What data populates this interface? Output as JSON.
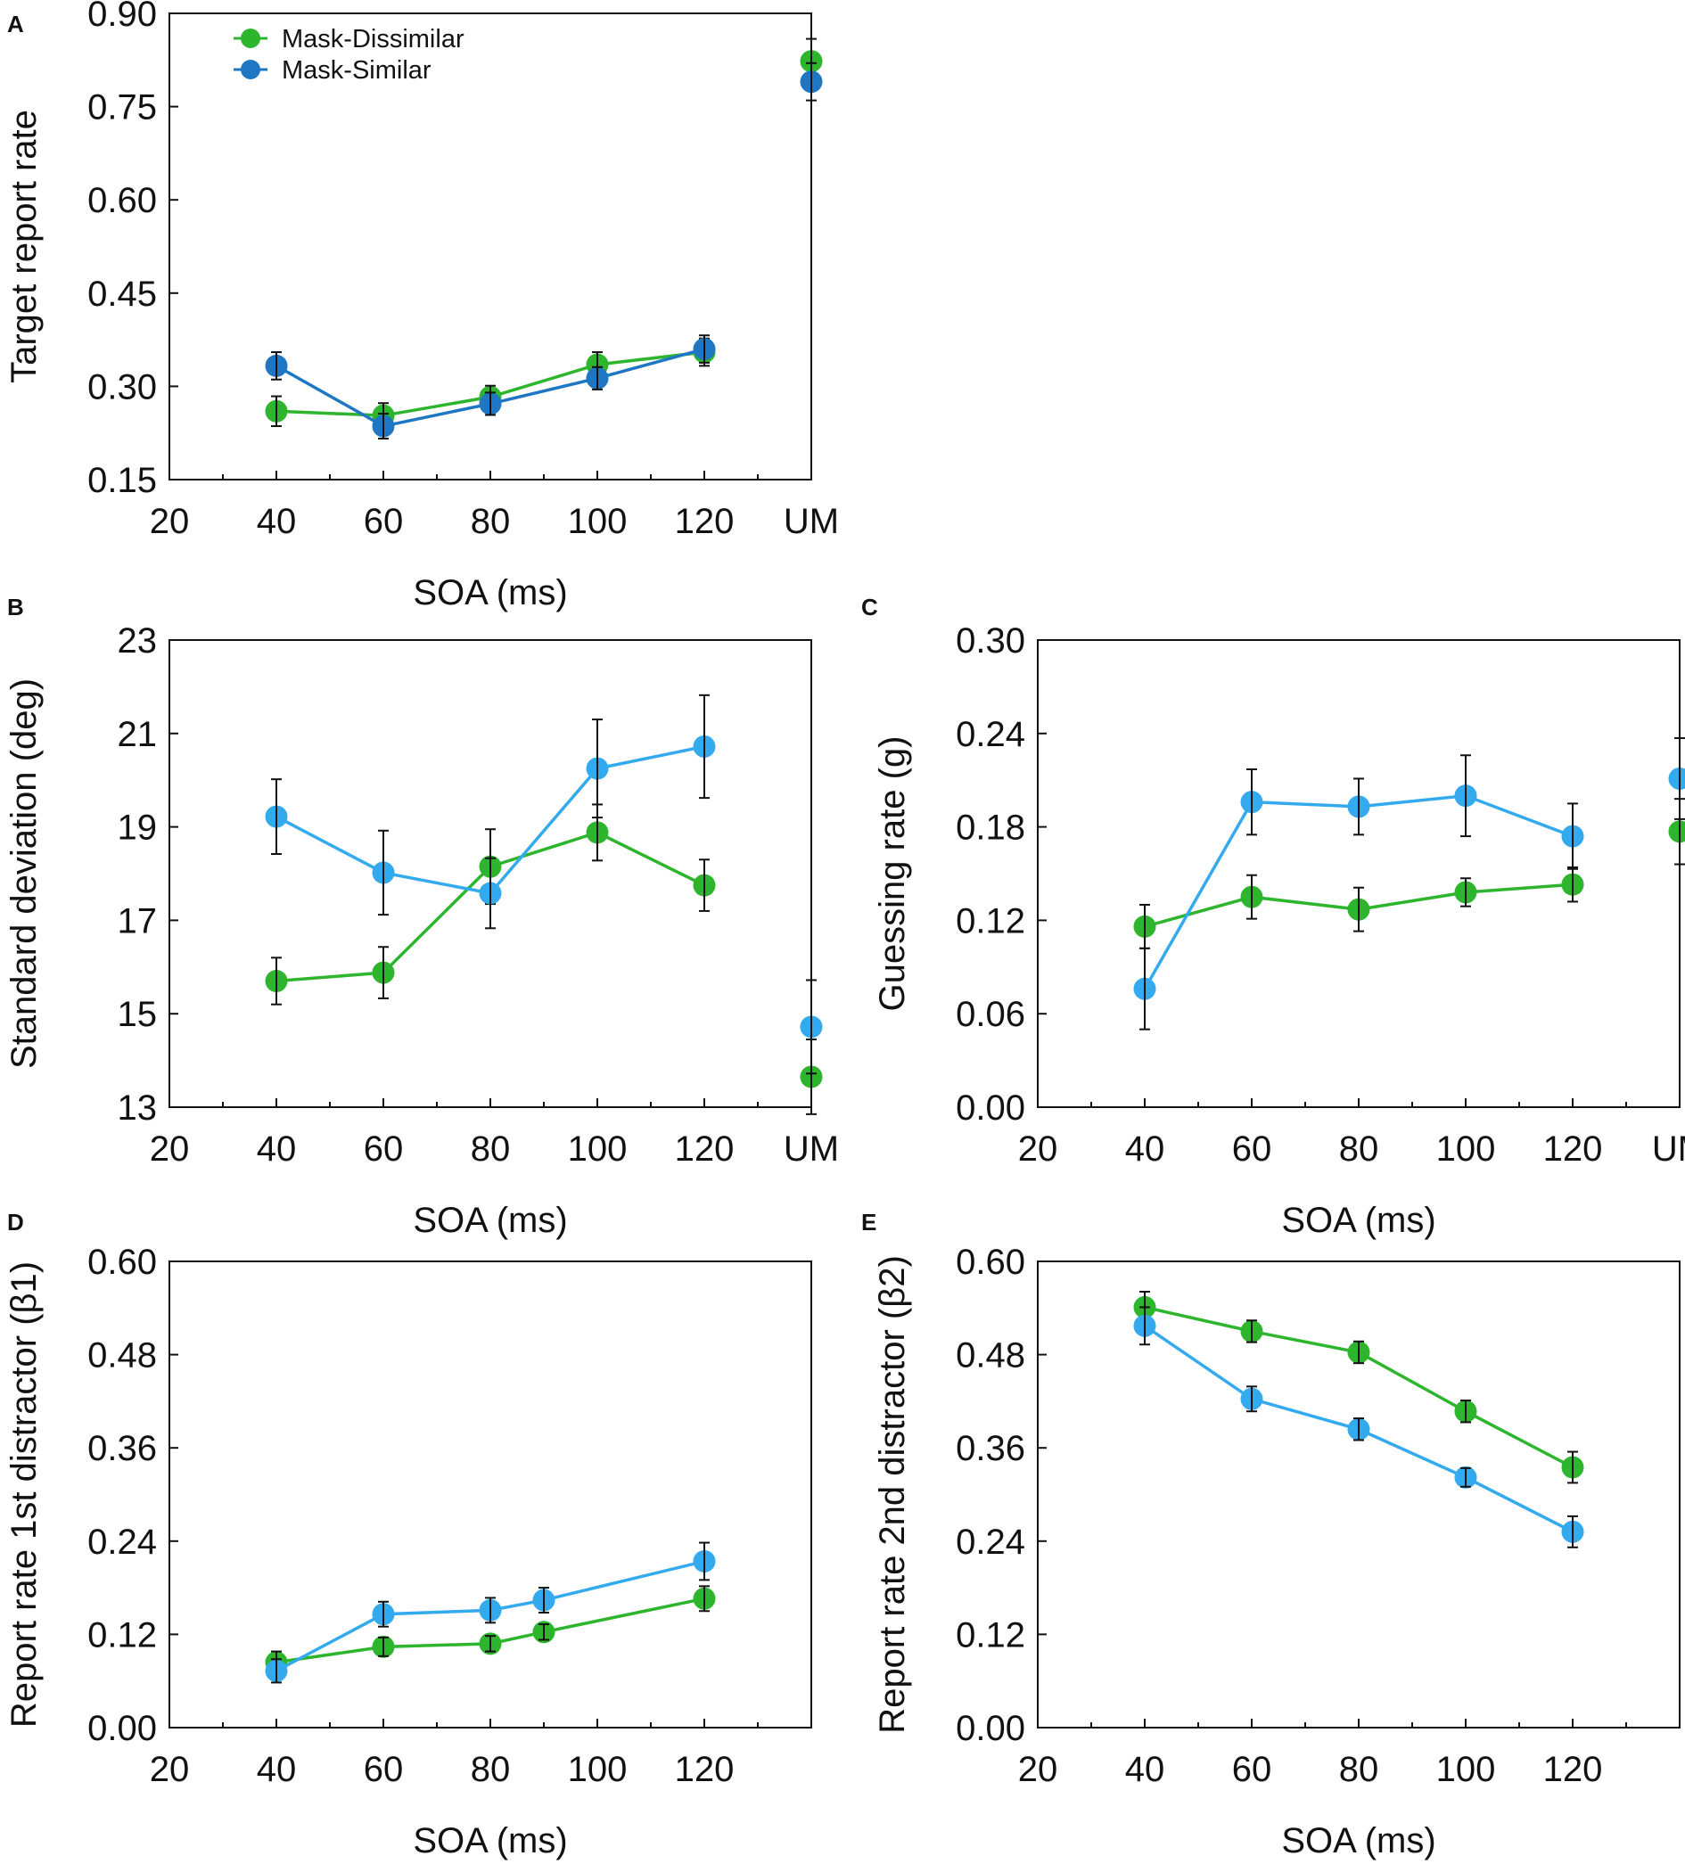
{
  "colors": {
    "mask_dissimilar": "#2db52d",
    "mask_similar_a": "#1f77c4",
    "mask_similar": "#33aaee",
    "error_bar": "#111111",
    "axis": "#111111"
  },
  "legend": {
    "entries": [
      {
        "name": "Mask-Dissimilar",
        "color": "#2db52d"
      },
      {
        "name": "Mask-Similar",
        "color": "#1f77c4"
      }
    ]
  },
  "chart_data": [
    {
      "panel": "A",
      "type": "line",
      "xlabel": "SOA (ms)",
      "ylabel": "Target report rate",
      "xlim": [
        20,
        140
      ],
      "ylim": [
        0.15,
        0.9
      ],
      "yticks": [
        "0.15",
        "0.30",
        "0.45",
        "0.60",
        "0.75",
        "0.90"
      ],
      "yticks_values": [
        0.15,
        0.3,
        0.45,
        0.6,
        0.75,
        0.9
      ],
      "xticks": [
        {
          "v": 20,
          "label": "20"
        },
        {
          "v": 40,
          "label": "40"
        },
        {
          "v": 60,
          "label": "60"
        },
        {
          "v": 80,
          "label": "80"
        },
        {
          "v": 100,
          "label": "100"
        },
        {
          "v": 120,
          "label": "120"
        },
        {
          "v": 140,
          "label": "UM"
        }
      ],
      "series": [
        {
          "name": "Mask-Dissimilar",
          "color": "#2db52d",
          "x": [
            40,
            60,
            80,
            100,
            120
          ],
          "y": [
            0.26,
            0.253,
            0.283,
            0.335,
            0.355
          ],
          "err": [
            0.024,
            0.02,
            0.018,
            0.02,
            0.022
          ],
          "um": {
            "x": 140,
            "y": 0.823,
            "err": 0.036
          }
        },
        {
          "name": "Mask-Similar",
          "color": "#1f77c4",
          "x": [
            40,
            60,
            80,
            100,
            120
          ],
          "y": [
            0.333,
            0.236,
            0.272,
            0.313,
            0.36
          ],
          "err": [
            0.022,
            0.02,
            0.018,
            0.018,
            0.022
          ],
          "um": {
            "x": 140,
            "y": 0.79,
            "err": 0.03
          }
        }
      ]
    },
    {
      "panel": "B",
      "type": "line",
      "xlabel": "SOA (ms)",
      "ylabel": "Standard deviation (deg)",
      "xlim": [
        20,
        140
      ],
      "ylim": [
        13,
        23
      ],
      "yticks": [
        "13",
        "15",
        "17",
        "19",
        "21",
        "23"
      ],
      "yticks_values": [
        13,
        15,
        17,
        19,
        21,
        23
      ],
      "xticks": [
        {
          "v": 20,
          "label": "20"
        },
        {
          "v": 40,
          "label": "40"
        },
        {
          "v": 60,
          "label": "60"
        },
        {
          "v": 80,
          "label": "80"
        },
        {
          "v": 100,
          "label": "100"
        },
        {
          "v": 120,
          "label": "120"
        },
        {
          "v": 140,
          "label": "UM"
        }
      ],
      "series": [
        {
          "name": "Mask-Dissimilar",
          "color": "#2db52d",
          "x": [
            40,
            60,
            80,
            100,
            120
          ],
          "y": [
            15.7,
            15.88,
            18.15,
            18.88,
            17.75
          ],
          "err": [
            0.5,
            0.55,
            0.8,
            0.6,
            0.55
          ],
          "um": {
            "x": 140,
            "y": 13.65,
            "err": 0.8
          }
        },
        {
          "name": "Mask-Similar",
          "color": "#33aaee",
          "x": [
            40,
            60,
            80,
            100,
            120
          ],
          "y": [
            19.22,
            18.02,
            17.58,
            20.25,
            20.72
          ],
          "err": [
            0.8,
            0.9,
            0.75,
            1.05,
            1.1
          ],
          "um": {
            "x": 140,
            "y": 14.72,
            "err": 1.0
          }
        }
      ]
    },
    {
      "panel": "C",
      "type": "line",
      "xlabel": "SOA (ms)",
      "ylabel": "Guessing rate (g)",
      "xlim": [
        20,
        140
      ],
      "ylim": [
        0,
        0.3
      ],
      "yticks": [
        "0.00",
        "0.06",
        "0.12",
        "0.18",
        "0.24",
        "0.30"
      ],
      "yticks_values": [
        0,
        0.06,
        0.12,
        0.18,
        0.24,
        0.3
      ],
      "xticks": [
        {
          "v": 20,
          "label": "20"
        },
        {
          "v": 40,
          "label": "40"
        },
        {
          "v": 60,
          "label": "60"
        },
        {
          "v": 80,
          "label": "80"
        },
        {
          "v": 100,
          "label": "100"
        },
        {
          "v": 120,
          "label": "120"
        },
        {
          "v": 140,
          "label": "UM"
        }
      ],
      "series": [
        {
          "name": "Mask-Dissimilar",
          "color": "#2db52d",
          "x": [
            40,
            60,
            80,
            100,
            120
          ],
          "y": [
            0.116,
            0.135,
            0.127,
            0.138,
            0.143
          ],
          "err": [
            0.014,
            0.014,
            0.014,
            0.009,
            0.011
          ],
          "um": {
            "x": 140,
            "y": 0.177,
            "err": 0.021
          }
        },
        {
          "name": "Mask-Similar",
          "color": "#33aaee",
          "x": [
            40,
            60,
            80,
            100,
            120
          ],
          "y": [
            0.076,
            0.196,
            0.193,
            0.2,
            0.174
          ],
          "err": [
            0.026,
            0.021,
            0.018,
            0.026,
            0.021
          ],
          "um": {
            "x": 140,
            "y": 0.211,
            "err": 0.026
          }
        }
      ]
    },
    {
      "panel": "D",
      "type": "line",
      "xlabel": "SOA (ms)",
      "ylabel": "Report rate 1st distractor (β1)",
      "xlim": [
        20,
        140
      ],
      "ylim": [
        0,
        0.6
      ],
      "yticks": [
        "0.00",
        "0.12",
        "0.24",
        "0.36",
        "0.48",
        "0.60"
      ],
      "yticks_values": [
        0,
        0.12,
        0.24,
        0.36,
        0.48,
        0.6
      ],
      "xticks": [
        {
          "v": 20,
          "label": "20"
        },
        {
          "v": 40,
          "label": "40"
        },
        {
          "v": 60,
          "label": "60"
        },
        {
          "v": 80,
          "label": "80"
        },
        {
          "v": 100,
          "label": "100"
        },
        {
          "v": 120,
          "label": "120"
        }
      ],
      "series": [
        {
          "name": "Mask-Dissimilar",
          "color": "#2db52d",
          "x": [
            40,
            60,
            80,
            90,
            120
          ],
          "y": [
            0.084,
            0.104,
            0.108,
            0.123,
            0.166
          ],
          "err": [
            0.014,
            0.012,
            0.01,
            0.01,
            0.016
          ]
        },
        {
          "name": "Mask-Similar",
          "color": "#33aaee",
          "x": [
            40,
            60,
            80,
            90,
            120
          ],
          "y": [
            0.073,
            0.146,
            0.151,
            0.164,
            0.214
          ],
          "err": [
            0.015,
            0.016,
            0.016,
            0.016,
            0.024
          ]
        }
      ]
    },
    {
      "panel": "E",
      "type": "line",
      "xlabel": "SOA (ms)",
      "ylabel": "Report rate 2nd distractor (β2)",
      "xlim": [
        20,
        140
      ],
      "ylim": [
        0,
        0.6
      ],
      "yticks": [
        "0.00",
        "0.12",
        "0.24",
        "0.36",
        "0.48",
        "0.60"
      ],
      "yticks_values": [
        0,
        0.12,
        0.24,
        0.36,
        0.48,
        0.6
      ],
      "xticks": [
        {
          "v": 20,
          "label": "20"
        },
        {
          "v": 40,
          "label": "40"
        },
        {
          "v": 60,
          "label": "60"
        },
        {
          "v": 80,
          "label": "80"
        },
        {
          "v": 100,
          "label": "100"
        },
        {
          "v": 120,
          "label": "120"
        }
      ],
      "series": [
        {
          "name": "Mask-Dissimilar",
          "color": "#2db52d",
          "x": [
            40,
            60,
            80,
            100,
            120
          ],
          "y": [
            0.541,
            0.51,
            0.483,
            0.407,
            0.335
          ],
          "err": [
            0.02,
            0.014,
            0.014,
            0.014,
            0.02
          ]
        },
        {
          "name": "Mask-Similar",
          "color": "#33aaee",
          "x": [
            40,
            60,
            80,
            100,
            120
          ],
          "y": [
            0.517,
            0.423,
            0.384,
            0.322,
            0.252
          ],
          "err": [
            0.024,
            0.016,
            0.014,
            0.012,
            0.02
          ]
        }
      ]
    }
  ]
}
